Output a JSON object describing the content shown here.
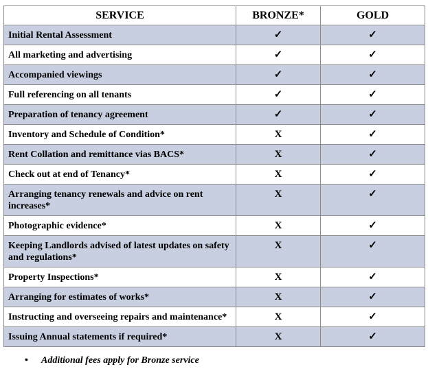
{
  "table": {
    "header": [
      "SERVICE",
      "BRONZE*",
      "GOLD"
    ],
    "rows": [
      [
        "Initial Rental Assessment",
        "✓",
        "✓"
      ],
      [
        "All marketing and advertising",
        "✓",
        "✓"
      ],
      [
        "Accompanied viewings",
        "✓",
        "✓"
      ],
      [
        "Full referencing on all tenants",
        "✓",
        "✓"
      ],
      [
        "Preparation of tenancy agreement",
        "✓",
        "✓"
      ],
      [
        "Inventory and Schedule of Condition*",
        "X",
        "✓"
      ],
      [
        "Rent Collation and remittance vias BACS*",
        "X",
        "✓"
      ],
      [
        "Check out at end of Tenancy*",
        "X",
        "✓"
      ],
      [
        "Arranging tenancy renewals and advice on rent increases*",
        "X",
        "✓"
      ],
      [
        "Photographic evidence*",
        "X",
        "✓"
      ],
      [
        "Keeping Landlords advised of latest updates on safety and regulations*",
        "X",
        "✓"
      ],
      [
        "Property Inspections*",
        "X",
        "✓"
      ],
      [
        "Arranging for estimates of works*",
        "X",
        "✓"
      ],
      [
        "Instructing and overseeing repairs and maintenance*",
        "X",
        "✓"
      ],
      [
        "Issuing Annual statements if required*",
        "X",
        "✓"
      ]
    ]
  },
  "footnote": "Additional fees apply for Bronze service"
}
